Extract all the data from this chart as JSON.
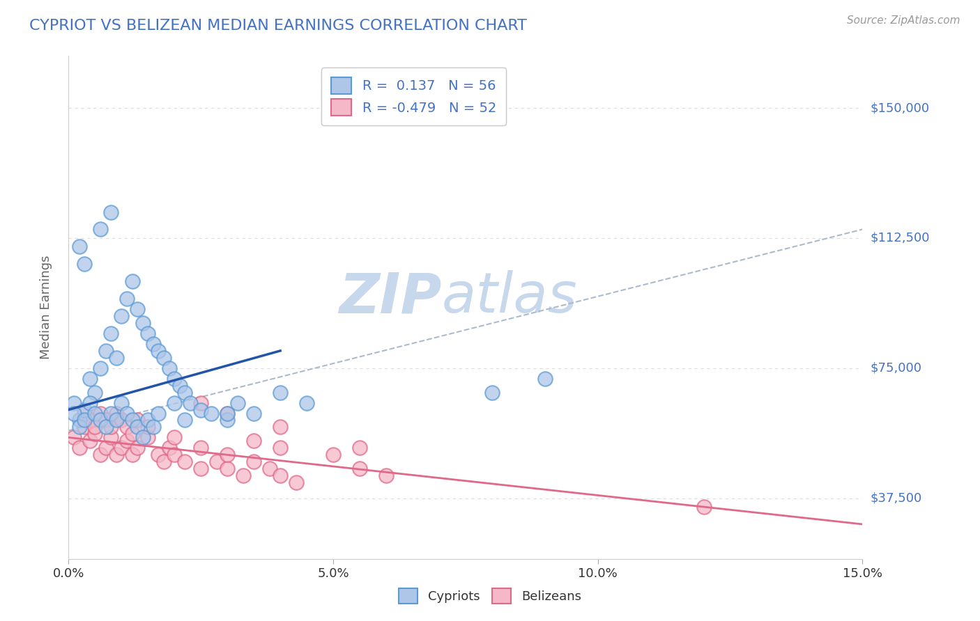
{
  "title": "CYPRIOT VS BELIZEAN MEDIAN EARNINGS CORRELATION CHART",
  "source_text": "Source: ZipAtlas.com",
  "ylabel": "Median Earnings",
  "xlim": [
    0.0,
    0.15
  ],
  "ylim": [
    20000,
    165000
  ],
  "xticks": [
    0.0,
    0.05,
    0.1,
    0.15
  ],
  "xtick_labels": [
    "0.0%",
    "5.0%",
    "10.0%",
    "15.0%"
  ],
  "ytick_values": [
    37500,
    75000,
    112500,
    150000
  ],
  "ytick_labels": [
    "$37,500",
    "$75,000",
    "$112,500",
    "$150,000"
  ],
  "cypriot_color": "#aec6e8",
  "cypriot_edge_color": "#5b9bd5",
  "belizean_color": "#f4b8c8",
  "belizean_edge_color": "#e06888",
  "trend_blue_color": "#2255aa",
  "trend_pink_color": "#e06888",
  "trend_dashed_color": "#aabbcc",
  "legend_R_blue": "0.137",
  "legend_N_blue": "56",
  "legend_R_pink": "-0.479",
  "legend_N_pink": "52",
  "watermark": "ZIPatlas",
  "watermark_color": "#c8d8ec",
  "title_color": "#4472c4",
  "axis_label_color": "#666666",
  "right_tick_color": "#4472c4",
  "grid_color": "#dddddd",
  "background_color": "#ffffff",
  "cypriot_x": [
    0.001,
    0.002,
    0.003,
    0.004,
    0.005,
    0.006,
    0.007,
    0.008,
    0.009,
    0.01,
    0.011,
    0.012,
    0.013,
    0.014,
    0.015,
    0.016,
    0.017,
    0.018,
    0.019,
    0.02,
    0.021,
    0.022,
    0.023,
    0.025,
    0.027,
    0.03,
    0.032,
    0.035,
    0.04,
    0.045,
    0.001,
    0.002,
    0.003,
    0.004,
    0.005,
    0.006,
    0.007,
    0.008,
    0.009,
    0.01,
    0.011,
    0.012,
    0.013,
    0.014,
    0.015,
    0.016,
    0.017,
    0.02,
    0.022,
    0.03,
    0.002,
    0.003,
    0.006,
    0.008,
    0.08,
    0.09
  ],
  "cypriot_y": [
    65000,
    60000,
    63000,
    72000,
    68000,
    75000,
    80000,
    85000,
    78000,
    90000,
    95000,
    100000,
    92000,
    88000,
    85000,
    82000,
    80000,
    78000,
    75000,
    72000,
    70000,
    68000,
    65000,
    63000,
    62000,
    60000,
    65000,
    62000,
    68000,
    65000,
    62000,
    58000,
    60000,
    65000,
    62000,
    60000,
    58000,
    62000,
    60000,
    65000,
    62000,
    60000,
    58000,
    55000,
    60000,
    58000,
    62000,
    65000,
    60000,
    62000,
    110000,
    105000,
    115000,
    120000,
    68000,
    72000
  ],
  "belizean_x": [
    0.001,
    0.002,
    0.003,
    0.004,
    0.005,
    0.006,
    0.007,
    0.008,
    0.009,
    0.01,
    0.011,
    0.012,
    0.013,
    0.015,
    0.017,
    0.018,
    0.019,
    0.02,
    0.022,
    0.025,
    0.028,
    0.03,
    0.033,
    0.035,
    0.038,
    0.04,
    0.043,
    0.02,
    0.025,
    0.03,
    0.003,
    0.004,
    0.005,
    0.006,
    0.007,
    0.008,
    0.009,
    0.01,
    0.011,
    0.012,
    0.013,
    0.015,
    0.055,
    0.06,
    0.04,
    0.05,
    0.035,
    0.055,
    0.025,
    0.03,
    0.04,
    0.12
  ],
  "belizean_y": [
    55000,
    52000,
    58000,
    54000,
    56000,
    50000,
    52000,
    55000,
    50000,
    52000,
    54000,
    50000,
    52000,
    55000,
    50000,
    48000,
    52000,
    50000,
    48000,
    46000,
    48000,
    46000,
    44000,
    48000,
    46000,
    44000,
    42000,
    55000,
    52000,
    50000,
    62000,
    60000,
    58000,
    62000,
    60000,
    58000,
    62000,
    60000,
    58000,
    56000,
    60000,
    58000,
    46000,
    44000,
    52000,
    50000,
    54000,
    52000,
    65000,
    62000,
    58000,
    35000
  ],
  "blue_line_x0": 0.0,
  "blue_line_x1": 0.04,
  "blue_line_y0": 63000,
  "blue_line_y1": 80000,
  "dashed_line_x0": 0.0,
  "dashed_line_x1": 0.15,
  "dashed_line_y0": 57000,
  "dashed_line_y1": 115000,
  "pink_line_x0": 0.0,
  "pink_line_x1": 0.15,
  "pink_line_y0": 55000,
  "pink_line_y1": 30000
}
